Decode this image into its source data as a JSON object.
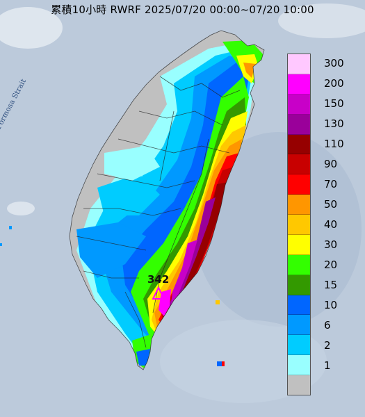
{
  "title": "累積10小時 RWRF 2025/07/20 00:00~07/20 10:00",
  "strait_label": "Formosa Strait",
  "peak_value": "342",
  "legend": [
    {
      "label": "300",
      "color": "#ffc8ff"
    },
    {
      "label": "200",
      "color": "#ff00ff"
    },
    {
      "label": "150",
      "color": "#c800c8"
    },
    {
      "label": "130",
      "color": "#9a009a"
    },
    {
      "label": "110",
      "color": "#960000"
    },
    {
      "label": "90",
      "color": "#c80000"
    },
    {
      "label": "70",
      "color": "#ff0000"
    },
    {
      "label": "50",
      "color": "#ff9600"
    },
    {
      "label": "40",
      "color": "#ffc800"
    },
    {
      "label": "30",
      "color": "#ffff00"
    },
    {
      "label": "20",
      "color": "#33ff00"
    },
    {
      "label": "15",
      "color": "#339900"
    },
    {
      "label": "10",
      "color": "#0066ff"
    },
    {
      "label": "6",
      "color": "#0099ff"
    },
    {
      "label": "2",
      "color": "#00ccff"
    },
    {
      "label": "1",
      "color": "#99ffff"
    },
    {
      "label": "",
      "color": "#c0c0c0"
    }
  ]
}
